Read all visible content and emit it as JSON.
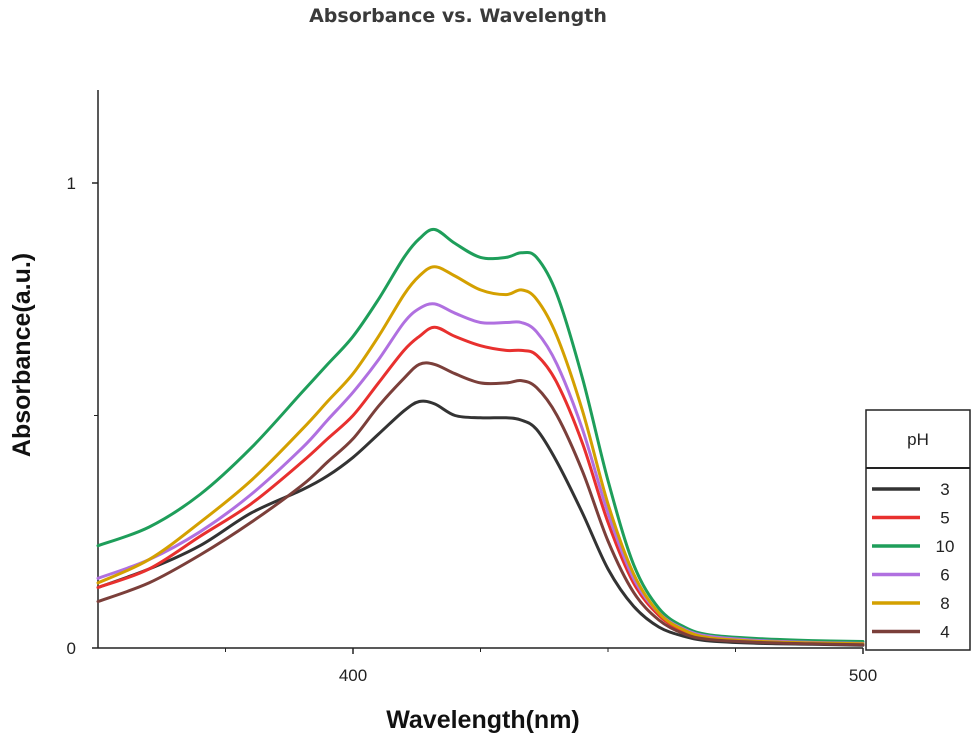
{
  "chart_data": {
    "type": "line",
    "title": "Absorbance vs. Wavelength",
    "xlabel": "Wavelength(nm)",
    "ylabel": "Absorbance(a.u.)",
    "xlim": [
      350,
      500
    ],
    "ylim": [
      0,
      1.2
    ],
    "xticks": [
      400,
      500
    ],
    "yticks": [
      0,
      1
    ],
    "xtick_labels": [
      "400",
      "500"
    ],
    "ytick_labels": [
      "0",
      "1"
    ],
    "grid": false,
    "legend": {
      "title": "pH",
      "placement": "right",
      "entries": [
        "3",
        "5",
        "10",
        "6",
        "8",
        "4"
      ]
    },
    "x": [
      350,
      360,
      370,
      380,
      390,
      395,
      400,
      405,
      410,
      413,
      416,
      420,
      425,
      430,
      433,
      436,
      440,
      445,
      450,
      455,
      460,
      465,
      470,
      480,
      490,
      500
    ],
    "series": [
      {
        "name": "3",
        "color": "#333333",
        "values": [
          0.13,
          0.17,
          0.22,
          0.29,
          0.34,
          0.37,
          0.41,
          0.46,
          0.51,
          0.53,
          0.525,
          0.5,
          0.495,
          0.495,
          0.49,
          0.47,
          0.4,
          0.29,
          0.17,
          0.09,
          0.045,
          0.025,
          0.015,
          0.01,
          0.008,
          0.006
        ]
      },
      {
        "name": "5",
        "color": "#e8302e",
        "values": [
          0.13,
          0.17,
          0.24,
          0.31,
          0.4,
          0.45,
          0.5,
          0.57,
          0.64,
          0.67,
          0.69,
          0.67,
          0.65,
          0.64,
          0.64,
          0.63,
          0.57,
          0.44,
          0.27,
          0.14,
          0.07,
          0.035,
          0.02,
          0.013,
          0.01,
          0.008
        ]
      },
      {
        "name": "10",
        "color": "#1e9e5a",
        "values": [
          0.22,
          0.26,
          0.33,
          0.43,
          0.55,
          0.61,
          0.67,
          0.75,
          0.84,
          0.88,
          0.9,
          0.87,
          0.84,
          0.84,
          0.85,
          0.84,
          0.76,
          0.58,
          0.36,
          0.18,
          0.085,
          0.045,
          0.028,
          0.02,
          0.016,
          0.014
        ]
      },
      {
        "name": "6",
        "color": "#b070e0",
        "values": [
          0.15,
          0.19,
          0.25,
          0.33,
          0.43,
          0.49,
          0.55,
          0.62,
          0.7,
          0.73,
          0.74,
          0.72,
          0.7,
          0.7,
          0.7,
          0.68,
          0.61,
          0.47,
          0.29,
          0.15,
          0.075,
          0.04,
          0.025,
          0.016,
          0.012,
          0.01
        ]
      },
      {
        "name": "8",
        "color": "#d4a000",
        "values": [
          0.14,
          0.19,
          0.27,
          0.36,
          0.47,
          0.53,
          0.59,
          0.67,
          0.76,
          0.8,
          0.82,
          0.8,
          0.77,
          0.76,
          0.77,
          0.75,
          0.67,
          0.51,
          0.31,
          0.16,
          0.075,
          0.038,
          0.022,
          0.014,
          0.011,
          0.009
        ]
      },
      {
        "name": "4",
        "color": "#7b3f3a",
        "values": [
          0.1,
          0.14,
          0.2,
          0.27,
          0.35,
          0.4,
          0.45,
          0.52,
          0.58,
          0.61,
          0.61,
          0.59,
          0.57,
          0.57,
          0.575,
          0.56,
          0.5,
          0.38,
          0.23,
          0.12,
          0.06,
          0.03,
          0.018,
          0.012,
          0.009,
          0.007
        ]
      }
    ]
  }
}
